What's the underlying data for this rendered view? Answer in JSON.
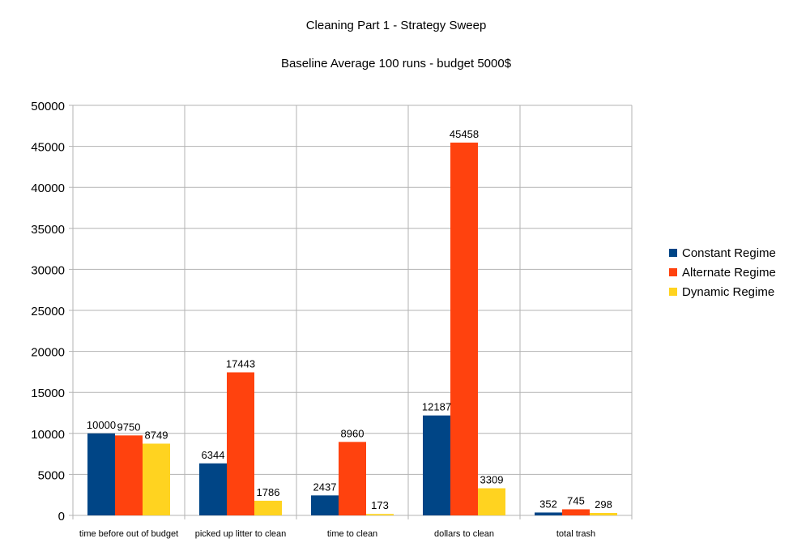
{
  "chart_data": {
    "type": "bar",
    "title": "Cleaning Part 1 - Strategy Sweep",
    "subtitle": "Baseline Average 100 runs - budget 5000$",
    "xlabel": "",
    "ylabel": "",
    "ylim": [
      0,
      50000
    ],
    "yticks": [
      0,
      5000,
      10000,
      15000,
      20000,
      25000,
      30000,
      35000,
      40000,
      45000,
      50000
    ],
    "grid": true,
    "legend_position": "right",
    "categories": [
      "time before out of budget",
      "picked up litter to clean",
      "time to clean",
      "dollars to clean",
      "total trash"
    ],
    "series": [
      {
        "name": "Constant Regime",
        "color": "#004586",
        "values": [
          10000,
          6344,
          2437,
          12187,
          352
        ]
      },
      {
        "name": "Alternate Regime",
        "color": "#ff420e",
        "values": [
          9750,
          17443,
          8960,
          45458,
          745
        ]
      },
      {
        "name": "Dynamic Regime",
        "color": "#ffd320",
        "values": [
          8749,
          1786,
          173,
          3309,
          298
        ]
      }
    ]
  }
}
